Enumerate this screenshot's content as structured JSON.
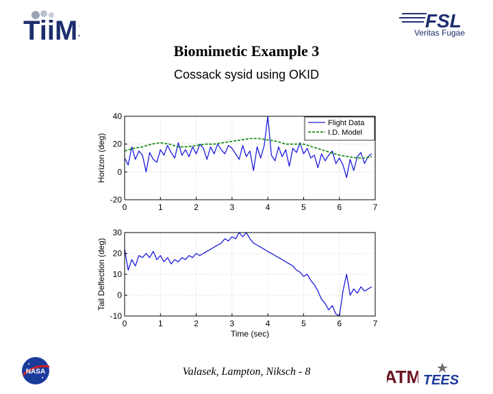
{
  "slide": {
    "title": "Biomimetic Example 3",
    "subtitle": "Cossack sysid using OKID",
    "footer": "Valasek, Lampton, Niksch - 8"
  },
  "logos": {
    "tiims": "TiiMS",
    "fsl": "FSL",
    "fsl_motto": "Veritas Fugae",
    "nasa": "NASA",
    "tamu": "ATM",
    "tees": "TEES"
  },
  "colors": {
    "flight": "#1a1adc",
    "model": "#1a8c1a",
    "axis": "#000000",
    "grid": "#b0b0b0"
  },
  "chart_data": [
    {
      "type": "line",
      "ylabel": "Horizon (deg)",
      "xlim": [
        0,
        7
      ],
      "ylim": [
        -20,
        40
      ],
      "xticks": [
        0,
        1,
        2,
        3,
        4,
        5,
        6,
        7
      ],
      "yticks": [
        -20,
        0,
        20,
        40
      ],
      "grid": true,
      "legend_position": "top-right",
      "series": [
        {
          "name": "Flight Data",
          "style": "solid",
          "x": [
            0,
            0.1,
            0.2,
            0.3,
            0.4,
            0.5,
            0.6,
            0.7,
            0.8,
            0.9,
            1.0,
            1.1,
            1.2,
            1.3,
            1.4,
            1.5,
            1.6,
            1.7,
            1.8,
            1.9,
            2.0,
            2.1,
            2.2,
            2.3,
            2.4,
            2.5,
            2.6,
            2.7,
            2.8,
            2.9,
            3.0,
            3.1,
            3.2,
            3.3,
            3.4,
            3.5,
            3.6,
            3.7,
            3.8,
            3.9,
            4.0,
            4.1,
            4.2,
            4.3,
            4.4,
            4.5,
            4.6,
            4.7,
            4.8,
            4.9,
            5.0,
            5.1,
            5.2,
            5.3,
            5.4,
            5.5,
            5.6,
            5.7,
            5.8,
            5.9,
            6.0,
            6.1,
            6.2,
            6.3,
            6.4,
            6.5,
            6.6,
            6.7,
            6.8,
            6.9
          ],
          "y": [
            10,
            5,
            18,
            9,
            15,
            12,
            0,
            14,
            9,
            7,
            16,
            12,
            19,
            14,
            10,
            21,
            12,
            16,
            11,
            18,
            13,
            20,
            17,
            9,
            18,
            13,
            20,
            16,
            13,
            19,
            17,
            13,
            9,
            19,
            11,
            15,
            1,
            18,
            10,
            19,
            40,
            12,
            8,
            18,
            11,
            16,
            4,
            17,
            14,
            21,
            13,
            17,
            10,
            12,
            3,
            13,
            8,
            12,
            15,
            6,
            10,
            5,
            -4,
            9,
            1,
            11,
            14,
            6,
            11,
            13
          ]
        },
        {
          "name": "I.D. Model",
          "style": "dashed",
          "x": [
            0,
            0.25,
            0.5,
            0.75,
            1.0,
            1.25,
            1.5,
            1.75,
            2.0,
            2.25,
            2.5,
            2.75,
            3.0,
            3.25,
            3.5,
            3.75,
            4.0,
            4.25,
            4.5,
            4.75,
            5.0,
            5.25,
            5.5,
            5.75,
            6.0,
            6.25,
            6.5,
            6.75,
            6.9
          ],
          "y": [
            15,
            17,
            18,
            20,
            21,
            20,
            18,
            18,
            19,
            20,
            20,
            21,
            22,
            23,
            24,
            24,
            23,
            22,
            20,
            20,
            20,
            18,
            16,
            14,
            12,
            11,
            10,
            10,
            11
          ]
        }
      ]
    },
    {
      "type": "line",
      "xlabel": "Time (sec)",
      "ylabel": "Tail Deflection (deg)",
      "xlim": [
        0,
        7
      ],
      "ylim": [
        -10,
        30
      ],
      "xticks": [
        0,
        1,
        2,
        3,
        4,
        5,
        6,
        7
      ],
      "yticks": [
        -10,
        0,
        10,
        20,
        30
      ],
      "grid": true,
      "series": [
        {
          "name": "",
          "style": "solid",
          "x": [
            0,
            0.1,
            0.2,
            0.3,
            0.4,
            0.5,
            0.6,
            0.7,
            0.8,
            0.9,
            1.0,
            1.1,
            1.2,
            1.3,
            1.4,
            1.5,
            1.6,
            1.7,
            1.8,
            1.9,
            2.0,
            2.1,
            2.2,
            2.3,
            2.4,
            2.5,
            2.6,
            2.7,
            2.8,
            2.9,
            3.0,
            3.1,
            3.2,
            3.3,
            3.4,
            3.5,
            3.6,
            3.7,
            3.8,
            3.9,
            4.0,
            4.1,
            4.2,
            4.3,
            4.4,
            4.5,
            4.6,
            4.7,
            4.8,
            4.9,
            5.0,
            5.1,
            5.2,
            5.3,
            5.4,
            5.5,
            5.6,
            5.7,
            5.8,
            5.9,
            6.0,
            6.1,
            6.2,
            6.3,
            6.4,
            6.5,
            6.6,
            6.7,
            6.8,
            6.9
          ],
          "y": [
            22,
            12,
            17,
            14,
            19,
            18,
            20,
            18,
            21,
            17,
            19,
            16,
            18,
            15,
            17,
            16,
            18,
            17,
            19,
            18,
            20,
            19,
            20,
            21,
            22,
            23,
            24,
            25,
            27,
            26,
            28,
            27,
            30,
            28,
            30,
            27,
            25,
            24,
            23,
            22,
            21,
            20,
            19,
            18,
            17,
            16,
            15,
            14,
            12,
            11,
            9,
            10,
            7,
            5,
            2,
            -2,
            -4,
            -7,
            -5,
            -9,
            -10,
            2,
            10,
            0,
            3,
            1,
            4,
            2,
            3,
            4
          ]
        }
      ]
    }
  ]
}
